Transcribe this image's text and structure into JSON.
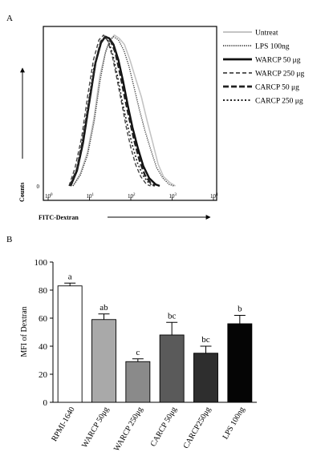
{
  "chart_data": [
    {
      "type": "line",
      "panel_label": "A",
      "xlabel": "FITC-Dextran",
      "ylabel": "Counts",
      "x_scale": "log",
      "xlim": [
        1,
        10000
      ],
      "x_ticks": [
        {
          "base": "10",
          "exp": "0",
          "value": 1
        },
        {
          "base": "10",
          "exp": "1",
          "value": 10
        },
        {
          "base": "10",
          "exp": "2",
          "value": 100
        },
        {
          "base": "10",
          "exp": "3",
          "value": 1000
        },
        {
          "base": "10",
          "exp": "4",
          "value": 10000
        }
      ],
      "y_ticks": [
        {
          "label": "0",
          "value": 0
        }
      ],
      "ylim": [
        0,
        100
      ],
      "grid": false,
      "legend_position": "right",
      "series": [
        {
          "name": "Untreat",
          "color": "#c4c4c4",
          "dash": "solid",
          "width": 1.6,
          "points": [
            [
              4,
              0
            ],
            [
              6,
              8
            ],
            [
              9,
              22
            ],
            [
              13,
              45
            ],
            [
              18,
              72
            ],
            [
              25,
              88
            ],
            [
              32,
              95
            ],
            [
              40,
              98
            ],
            [
              52,
              96
            ],
            [
              70,
              92
            ],
            [
              95,
              82
            ],
            [
              130,
              70
            ],
            [
              180,
              58
            ],
            [
              250,
              42
            ],
            [
              340,
              28
            ],
            [
              460,
              14
            ],
            [
              620,
              6
            ],
            [
              900,
              2
            ],
            [
              1200,
              0
            ]
          ]
        },
        {
          "name": "LPS 100ng",
          "color": "#3a3a3a",
          "dash": "1.2 1.4",
          "width": 1.4,
          "points": [
            [
              4,
              0
            ],
            [
              6,
              7
            ],
            [
              9,
              20
            ],
            [
              13,
              42
            ],
            [
              18,
              68
            ],
            [
              24,
              86
            ],
            [
              30,
              94
            ],
            [
              38,
              97
            ],
            [
              50,
              95
            ],
            [
              68,
              88
            ],
            [
              90,
              78
            ],
            [
              120,
              64
            ],
            [
              160,
              50
            ],
            [
              220,
              36
            ],
            [
              300,
              24
            ],
            [
              420,
              12
            ],
            [
              600,
              5
            ],
            [
              850,
              1
            ],
            [
              1100,
              0
            ]
          ]
        },
        {
          "name": "WARCP 50 μg",
          "color": "#111111",
          "dash": "solid",
          "width": 2.4,
          "points": [
            [
              3.5,
              0
            ],
            [
              5,
              10
            ],
            [
              7,
              28
            ],
            [
              10,
              55
            ],
            [
              14,
              80
            ],
            [
              19,
              93
            ],
            [
              24,
              97
            ],
            [
              30,
              96
            ],
            [
              38,
              92
            ],
            [
              50,
              82
            ],
            [
              65,
              68
            ],
            [
              85,
              52
            ],
            [
              110,
              38
            ],
            [
              150,
              24
            ],
            [
              200,
              13
            ],
            [
              280,
              5
            ],
            [
              400,
              1
            ],
            [
              500,
              0
            ]
          ]
        },
        {
          "name": "WARCP 250 μg",
          "color": "#444444",
          "dash": "5 3",
          "width": 1.4,
          "points": [
            [
              3.2,
              0
            ],
            [
              4.5,
              12
            ],
            [
              6.5,
              32
            ],
            [
              9,
              58
            ],
            [
              12.5,
              82
            ],
            [
              17,
              95
            ],
            [
              22,
              98
            ],
            [
              28,
              94
            ],
            [
              36,
              84
            ],
            [
              46,
              70
            ],
            [
              60,
              54
            ],
            [
              78,
              38
            ],
            [
              100,
              25
            ],
            [
              130,
              14
            ],
            [
              175,
              6
            ],
            [
              240,
              1
            ],
            [
              300,
              0
            ]
          ]
        },
        {
          "name": "CARCP 50 μg",
          "color": "#222222",
          "dash": "7 3",
          "width": 2.4,
          "points": [
            [
              3.4,
              0
            ],
            [
              5,
              11
            ],
            [
              7,
              30
            ],
            [
              10,
              56
            ],
            [
              14,
              80
            ],
            [
              19,
              94
            ],
            [
              25,
              97
            ],
            [
              32,
              95
            ],
            [
              42,
              87
            ],
            [
              55,
              73
            ],
            [
              72,
              57
            ],
            [
              95,
              42
            ],
            [
              125,
              28
            ],
            [
              165,
              16
            ],
            [
              220,
              7
            ],
            [
              300,
              2
            ],
            [
              380,
              0
            ]
          ]
        },
        {
          "name": "CARCP 250 μg",
          "color": "#222222",
          "dash": "2 2.5",
          "width": 1.6,
          "points": [
            [
              3.3,
              0
            ],
            [
              4.8,
              10
            ],
            [
              6.8,
              30
            ],
            [
              9.5,
              55
            ],
            [
              13,
              78
            ],
            [
              18,
              92
            ],
            [
              23,
              97
            ],
            [
              29,
              94
            ],
            [
              37,
              85
            ],
            [
              48,
              71
            ],
            [
              62,
              55
            ],
            [
              82,
              40
            ],
            [
              108,
              27
            ],
            [
              145,
              15
            ],
            [
              195,
              7
            ],
            [
              270,
              2
            ],
            [
              350,
              0
            ]
          ]
        }
      ]
    },
    {
      "type": "bar",
      "panel_label": "B",
      "ylabel": "MFI of Dextran",
      "ylim": [
        0,
        100
      ],
      "y_ticks": [
        0,
        20,
        40,
        60,
        80,
        100
      ],
      "grid": false,
      "categories": [
        "RPMI-1640",
        "WARCP 50μg",
        "WARCP 250μg",
        "CARCP 50μg",
        "CARCP250μg",
        "LPS 100ng"
      ],
      "values": [
        83,
        59,
        29,
        48,
        35,
        56
      ],
      "errors": [
        2,
        4,
        2,
        9,
        5,
        6
      ],
      "significance": [
        "a",
        "ab",
        "c",
        "bc",
        "bc",
        "b"
      ],
      "colors": [
        "#ffffff",
        "#a9a9a9",
        "#8a8a8a",
        "#5a5a5a",
        "#2e2e2e",
        "#050505"
      ]
    }
  ]
}
